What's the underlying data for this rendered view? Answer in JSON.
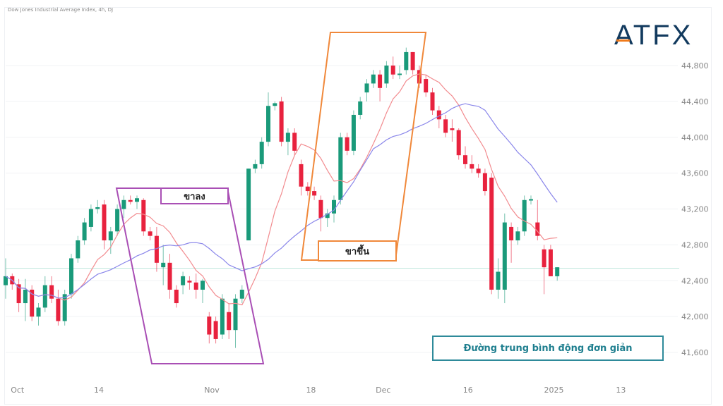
{
  "header": {
    "title": "Dow Jones Industrial Average Index, 4h, DJ",
    "logo": "ATFX"
  },
  "annotations": {
    "downtrend": "ขาลง",
    "uptrend": "ขาขึ้น",
    "sma_legend": "Đường trung bình động đơn giản"
  },
  "colors": {
    "up": "#1a9a7a",
    "down": "#e8223e",
    "ma_fast": "#f28b8f",
    "ma_slow": "#8a86ea",
    "ref_line": "#bfe6dc",
    "down_box": "#a94fb5",
    "up_box": "#f0883a",
    "legend_box": "#2e8a9a"
  },
  "chart_data": {
    "type": "candlestick",
    "title": "Dow Jones Industrial Average Index, 4h, DJ",
    "ylim": [
      41400,
      45200
    ],
    "yticks": [
      41600,
      42000,
      42400,
      42800,
      43200,
      43600,
      44000,
      44400,
      44800
    ],
    "ytick_labels": [
      "41,600",
      "42,000",
      "42,400",
      "42,800",
      "43,200",
      "43,600",
      "44,000",
      "44,400",
      "44,800"
    ],
    "xticks": [
      {
        "label": "Oct",
        "index": 1.8
      },
      {
        "label": "14",
        "index": 14.2
      },
      {
        "label": "Nov",
        "index": 31.4
      },
      {
        "label": "18",
        "index": 46.5
      },
      {
        "label": "Dec",
        "index": 57.5
      },
      {
        "label": "16",
        "index": 70.4
      },
      {
        "label": "2025",
        "index": 83.5
      },
      {
        "label": "13",
        "index": 93.7
      }
    ],
    "reference_line": 42540,
    "moving_averages": [
      {
        "name": "SMA fast",
        "period": 9,
        "color_key": "ma_fast"
      },
      {
        "name": "SMA slow",
        "period": 20,
        "color_key": "ma_slow"
      }
    ],
    "ohlc": [
      [
        42350,
        42650,
        42200,
        42450
      ],
      [
        42450,
        42480,
        42300,
        42360
      ],
      [
        42360,
        42420,
        42050,
        42150
      ],
      [
        42150,
        42420,
        41950,
        42300
      ],
      [
        42300,
        42350,
        41950,
        42000
      ],
      [
        42000,
        42150,
        41900,
        42100
      ],
      [
        42100,
        42450,
        42050,
        42350
      ],
      [
        42350,
        42450,
        42150,
        42200
      ],
      [
        42200,
        42300,
        41900,
        41950
      ],
      [
        41950,
        42300,
        41900,
        42250
      ],
      [
        42250,
        42700,
        42200,
        42650
      ],
      [
        42650,
        42900,
        42600,
        42850
      ],
      [
        42850,
        43100,
        42800,
        43050
      ],
      [
        43000,
        43250,
        42950,
        43200
      ],
      [
        43200,
        43300,
        43150,
        43220
      ],
      [
        43250,
        43300,
        42750,
        42850
      ],
      [
        42850,
        43000,
        42700,
        42950
      ],
      [
        42950,
        43250,
        42900,
        43200
      ],
      [
        43200,
        43350,
        43100,
        43300
      ],
      [
        43300,
        43350,
        43250,
        43280
      ],
      [
        43280,
        43350,
        43200,
        43320
      ],
      [
        43300,
        43320,
        42900,
        42950
      ],
      [
        42950,
        43000,
        42850,
        42900
      ],
      [
        42900,
        43000,
        42500,
        42600
      ],
      [
        42550,
        42800,
        42350,
        42600
      ],
      [
        42600,
        42700,
        42200,
        42300
      ],
      [
        42300,
        42350,
        42100,
        42150
      ],
      [
        42350,
        42500,
        42250,
        42450
      ],
      [
        42400,
        42450,
        42300,
        42380
      ],
      [
        42380,
        42480,
        42200,
        42300
      ],
      [
        42300,
        42420,
        42150,
        42400
      ],
      [
        42000,
        42050,
        41700,
        41800
      ],
      [
        41950,
        42000,
        41700,
        41750
      ],
      [
        41800,
        42250,
        41750,
        42200
      ],
      [
        42050,
        42150,
        41750,
        41850
      ],
      [
        41850,
        42250,
        41650,
        42200
      ],
      [
        42200,
        42350,
        42150,
        42300
      ],
      [
        42850,
        43650,
        42850,
        43650
      ],
      [
        43650,
        43750,
        43600,
        43700
      ],
      [
        43700,
        44000,
        43650,
        43950
      ],
      [
        43950,
        44500,
        43900,
        44350
      ],
      [
        44350,
        44400,
        44300,
        44380
      ],
      [
        44400,
        44450,
        43900,
        43950
      ],
      [
        43950,
        44100,
        43800,
        44050
      ],
      [
        44050,
        44100,
        43800,
        43850
      ],
      [
        43700,
        43750,
        43350,
        43450
      ],
      [
        43450,
        43500,
        43350,
        43400
      ],
      [
        43400,
        43450,
        43300,
        43350
      ],
      [
        43300,
        43350,
        42950,
        43100
      ],
      [
        43100,
        43200,
        43000,
        43150
      ],
      [
        43150,
        43350,
        43050,
        43300
      ],
      [
        43300,
        44050,
        43250,
        44000
      ],
      [
        44000,
        44050,
        43800,
        43850
      ],
      [
        43850,
        44300,
        43800,
        44250
      ],
      [
        44250,
        44450,
        44200,
        44400
      ],
      [
        44500,
        44650,
        44400,
        44600
      ],
      [
        44600,
        44750,
        44550,
        44700
      ],
      [
        44700,
        44750,
        44400,
        44550
      ],
      [
        44600,
        44850,
        44550,
        44800
      ],
      [
        44800,
        44900,
        44650,
        44700
      ],
      [
        44700,
        44800,
        44650,
        44710
      ],
      [
        44750,
        45000,
        44700,
        44950
      ],
      [
        44950,
        44950,
        44700,
        44750
      ],
      [
        44750,
        44800,
        44550,
        44600
      ],
      [
        44650,
        44700,
        44450,
        44500
      ],
      [
        44500,
        44550,
        44250,
        44300
      ],
      [
        44300,
        44350,
        44100,
        44200
      ],
      [
        44200,
        44250,
        44000,
        44050
      ],
      [
        44100,
        44200,
        43950,
        44080
      ],
      [
        44080,
        44100,
        43750,
        43800
      ],
      [
        43800,
        43900,
        43650,
        43700
      ],
      [
        43700,
        43800,
        43600,
        43650
      ],
      [
        43650,
        43700,
        43550,
        43600
      ],
      [
        43600,
        43650,
        43350,
        43400
      ],
      [
        43550,
        43600,
        42250,
        42300
      ],
      [
        42300,
        42650,
        42200,
        42500
      ],
      [
        42300,
        43150,
        42150,
        43050
      ],
      [
        43000,
        43050,
        42600,
        42850
      ],
      [
        42850,
        43000,
        42800,
        42950
      ],
      [
        42950,
        43350,
        42900,
        43300
      ],
      [
        43300,
        43350,
        43250,
        43310
      ],
      [
        43050,
        43300,
        42850,
        42900
      ],
      [
        42750,
        42800,
        42250,
        42550
      ],
      [
        42750,
        42800,
        42450,
        42450
      ],
      [
        42450,
        42550,
        42400,
        42550
      ]
    ]
  }
}
